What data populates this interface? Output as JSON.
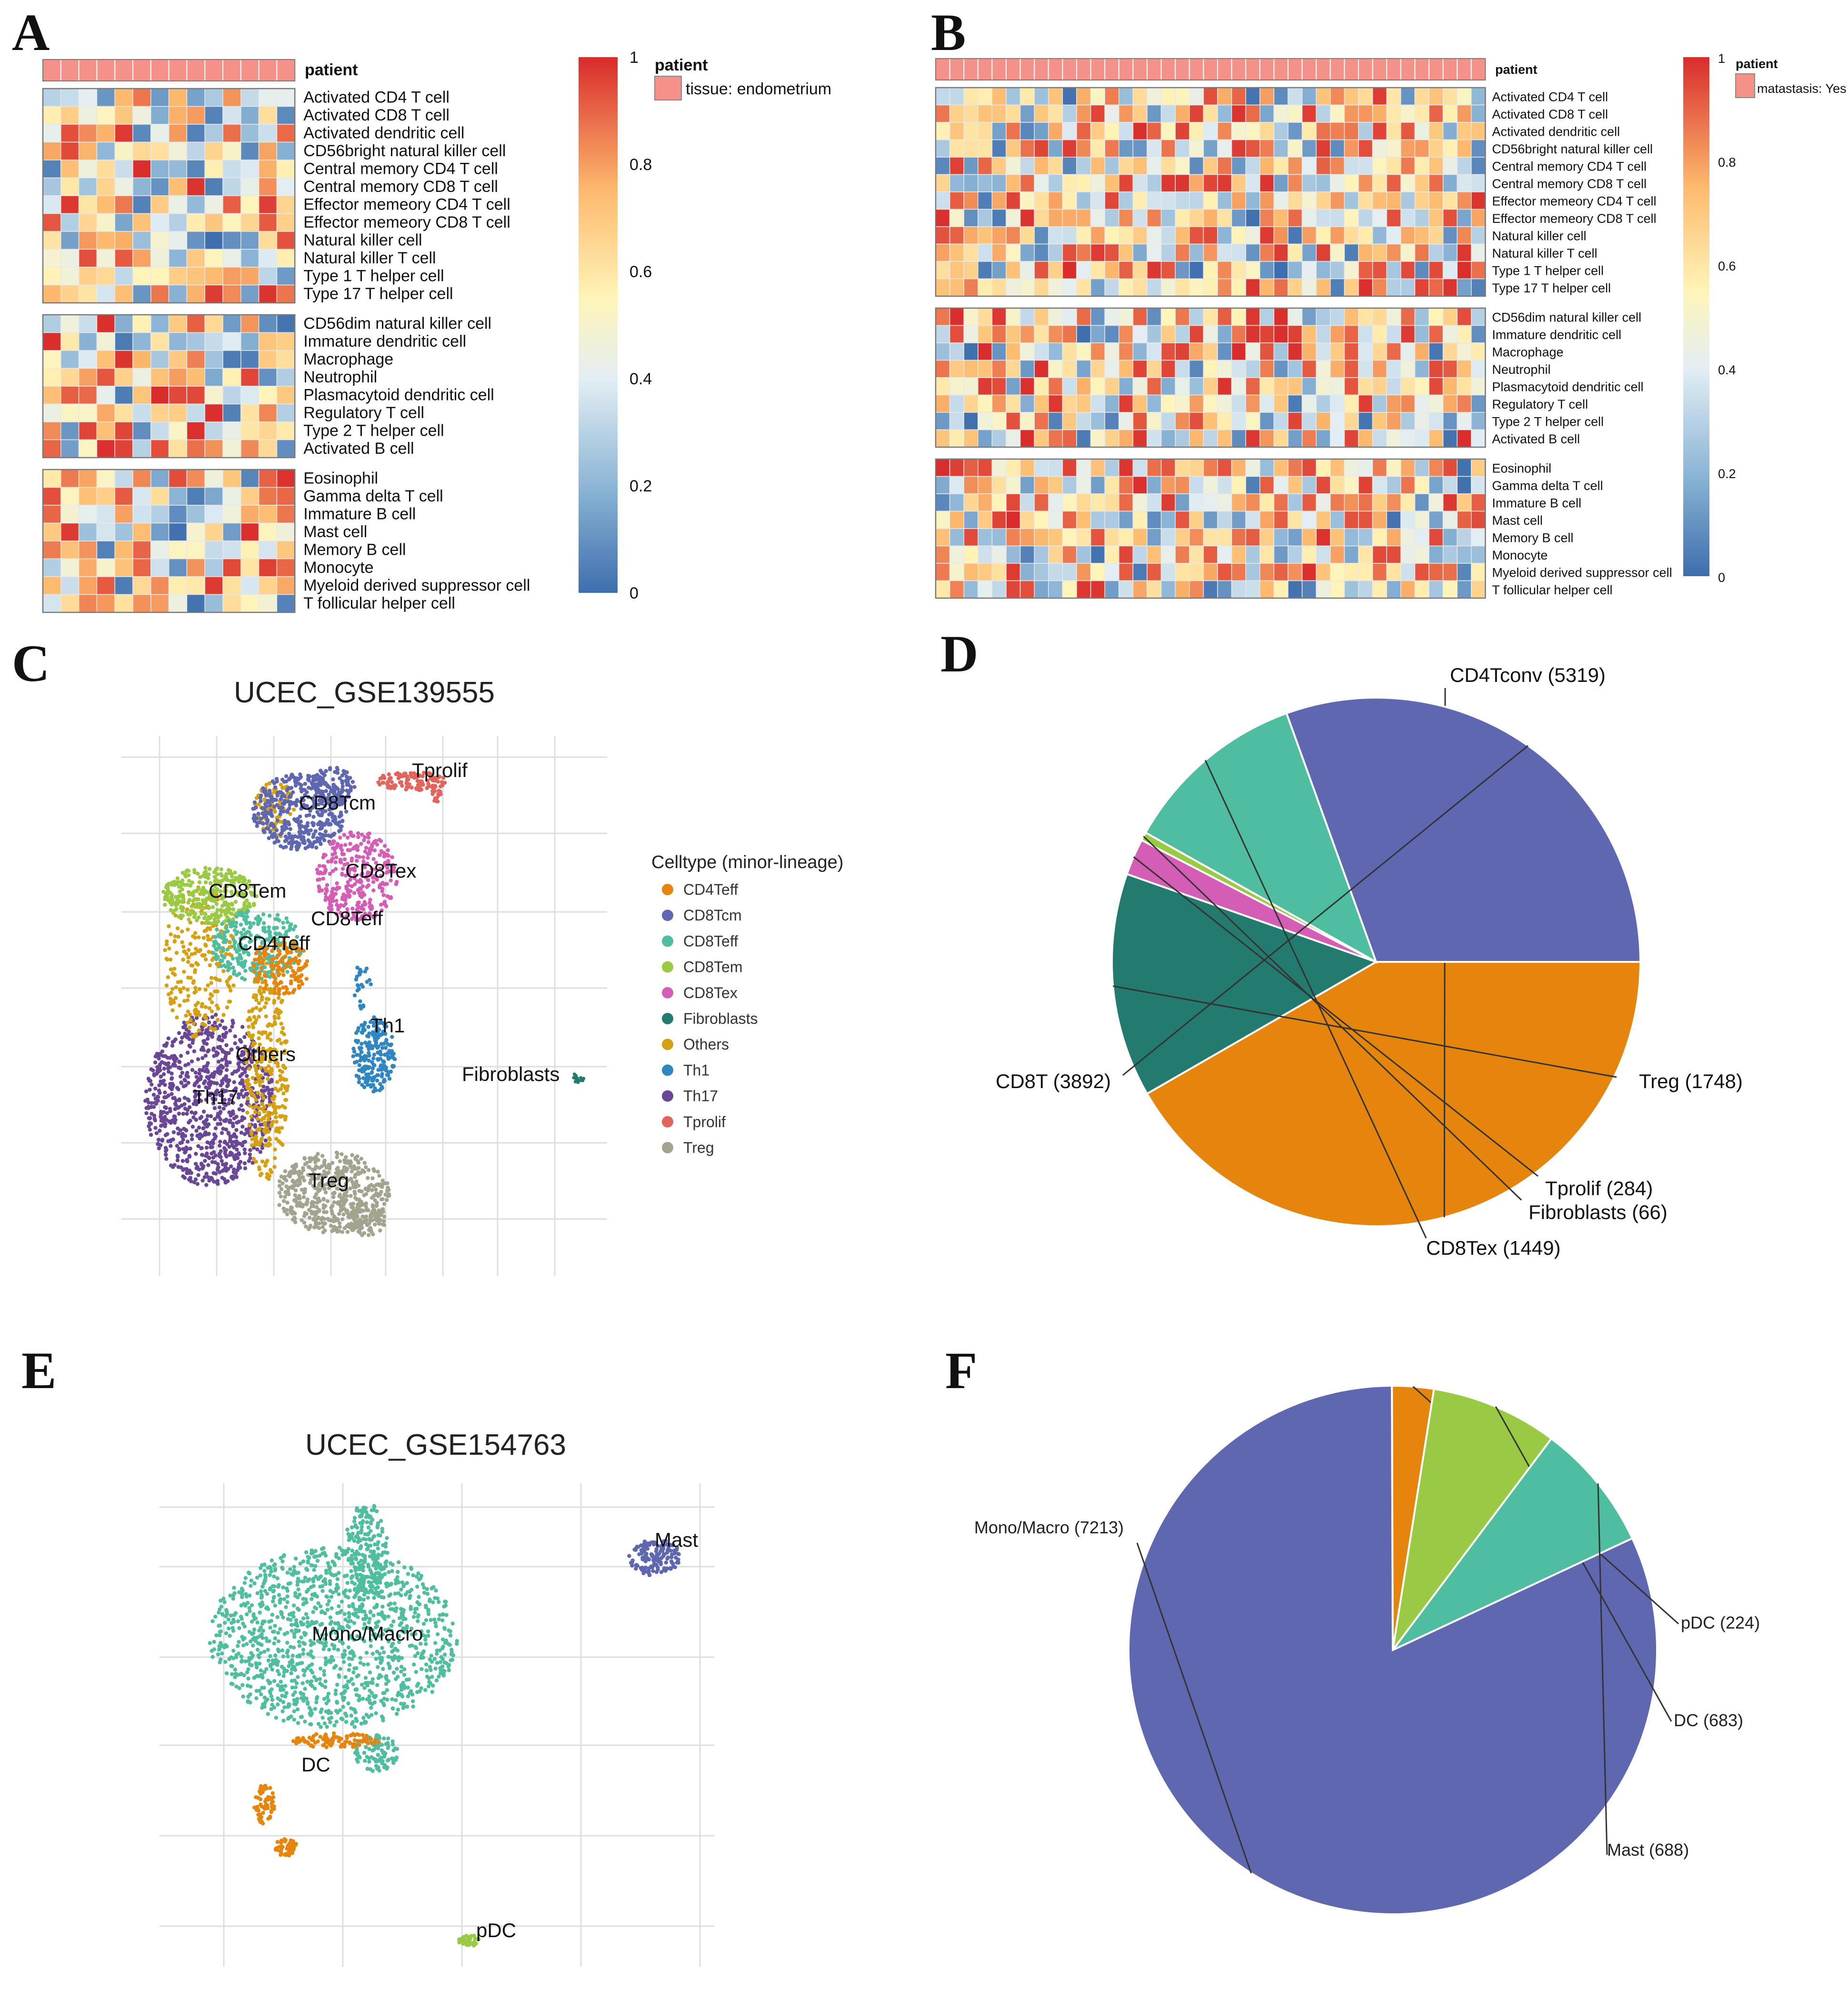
{
  "panels": {
    "A": {
      "letter": "A"
    },
    "B": {
      "letter": "B"
    },
    "C": {
      "letter": "C"
    },
    "D": {
      "letter": "D"
    },
    "E": {
      "letter": "E"
    },
    "F": {
      "letter": "F"
    }
  },
  "chart_data": [
    {
      "id": "A",
      "type": "heatmap",
      "annotation_label": "patient",
      "legend_title": "patient",
      "legend_entry": "tissue: endometrium",
      "colorbar_ticks": [
        "1",
        "0.8",
        "0.6",
        "0.4",
        "0.2",
        "0"
      ],
      "n_columns": 14,
      "row_groups": [
        [
          "Activated CD4 T cell",
          "Activated CD8 T cell",
          "Activated dendritic cell",
          "CD56bright natural killer cell",
          "Central memory CD4 T cell",
          "Central memory CD8 T cell",
          "Effector memeory CD4 T cell",
          "Effector memeory CD8 T cell",
          "Natural killer cell",
          "Natural killer T cell",
          "Type 1 T helper cell",
          "Type 17 T helper cell"
        ],
        [
          "CD56dim natural killer cell",
          "Immature dendritic cell",
          "Macrophage",
          "Neutrophil",
          "Plasmacytoid dendritic cell",
          "Regulatory T cell",
          "Type 2 T helper cell",
          "Activated B cell"
        ],
        [
          "Eosinophil",
          "Gamma delta T cell",
          "Immature  B cell",
          "Mast cell",
          "Memory B cell",
          "Monocyte",
          "Myeloid derived suppressor cell",
          "T follicular helper cell"
        ]
      ]
    },
    {
      "id": "B",
      "type": "heatmap",
      "annotation_label": "patient",
      "legend_title": "patient",
      "legend_entry": "matastasis: Yes",
      "colorbar_ticks": [
        "1",
        "0.8",
        "0.6",
        "0.4",
        "0.2",
        "0"
      ],
      "n_columns": 39,
      "row_groups": [
        [
          "Activated CD4 T cell",
          "Activated CD8 T cell",
          "Activated dendritic cell",
          "CD56bright natural killer cell",
          "Central memory CD4 T cell",
          "Central memory CD8 T cell",
          "Effector memeory CD4 T cell",
          "Effector memeory CD8 T cell",
          "Natural killer cell",
          "Natural killer T cell",
          "Type 1 T helper cell",
          "Type 17 T helper cell"
        ],
        [
          "CD56dim natural killer cell",
          "Immature dendritic cell",
          "Macrophage",
          "Neutrophil",
          "Plasmacytoid dendritic cell",
          "Regulatory T cell",
          "Type 2 T helper cell",
          "Activated B cell"
        ],
        [
          "Eosinophil",
          "Gamma delta T cell",
          "Immature  B cell",
          "Mast cell",
          "Memory B cell",
          "Monocyte",
          "Myeloid derived suppressor cell",
          "T follicular helper cell"
        ]
      ]
    },
    {
      "id": "C",
      "type": "scatter",
      "title": "UCEC_GSE139555",
      "legend_title": "Celltype (minor-lineage)",
      "legend": [
        {
          "name": "CD4Teff",
          "color": "#E6850E"
        },
        {
          "name": "CD8Tcm",
          "color": "#5F67B1"
        },
        {
          "name": "CD8Teff",
          "color": "#4FBDA0"
        },
        {
          "name": "CD8Tem",
          "color": "#9AC943"
        },
        {
          "name": "CD8Tex",
          "color": "#D45DB6"
        },
        {
          "name": "Fibroblasts",
          "color": "#237A6E"
        },
        {
          "name": "Others",
          "color": "#D6A013"
        },
        {
          "name": "Th1",
          "color": "#2F86C1"
        },
        {
          "name": "Th17",
          "color": "#6A4697"
        },
        {
          "name": "Tprolif",
          "color": "#E0655C"
        },
        {
          "name": "Treg",
          "color": "#A3A38F"
        }
      ],
      "cluster_labels": [
        "Tprolif",
        "CD8Tcm",
        "CD8Tex",
        "CD8Tem",
        "CD8Teff",
        "CD4Teff",
        "Th1",
        "Others",
        "Fibroblasts",
        "Th17",
        "Treg"
      ]
    },
    {
      "id": "D",
      "type": "pie",
      "slices": [
        {
          "name": "CD4Tconv",
          "value": 5319,
          "label": "CD4Tconv (5319)",
          "color": "#E6850E"
        },
        {
          "name": "Treg",
          "value": 1748,
          "label": "Treg (1748)",
          "color": "#237A6E"
        },
        {
          "name": "Tprolif",
          "value": 284,
          "label": "Tprolif (284)",
          "color": "#D45DB6"
        },
        {
          "name": "Fibroblasts",
          "value": 66,
          "label": "Fibroblasts (66)",
          "color": "#9AC943"
        },
        {
          "name": "CD8Tex",
          "value": 1449,
          "label": "CD8Tex (1449)",
          "color": "#4FBDA0"
        },
        {
          "name": "CD8T",
          "value": 3892,
          "label": "CD8T (3892)",
          "color": "#5F67B1"
        }
      ]
    },
    {
      "id": "E",
      "type": "scatter",
      "title": "UCEC_GSE154763",
      "cluster_labels": [
        "Mast",
        "Mono/Macro",
        "DC",
        "pDC"
      ],
      "colors": {
        "Mono/Macro": "#4FBDA0",
        "DC": "#E6850E",
        "Mast": "#5F67B1",
        "pDC": "#9AC943"
      }
    },
    {
      "id": "F",
      "type": "pie",
      "slices": [
        {
          "name": "Mono/Macro",
          "value": 7213,
          "label": "Mono/Macro (7213)",
          "color": "#5F67B1"
        },
        {
          "name": "pDC",
          "value": 224,
          "label": "pDC (224)",
          "color": "#E6850E"
        },
        {
          "name": "DC",
          "value": 683,
          "label": "DC (683)",
          "color": "#9AC943"
        },
        {
          "name": "Mast",
          "value": 688,
          "label": "Mast (688)",
          "color": "#4FBDA0"
        }
      ]
    }
  ]
}
